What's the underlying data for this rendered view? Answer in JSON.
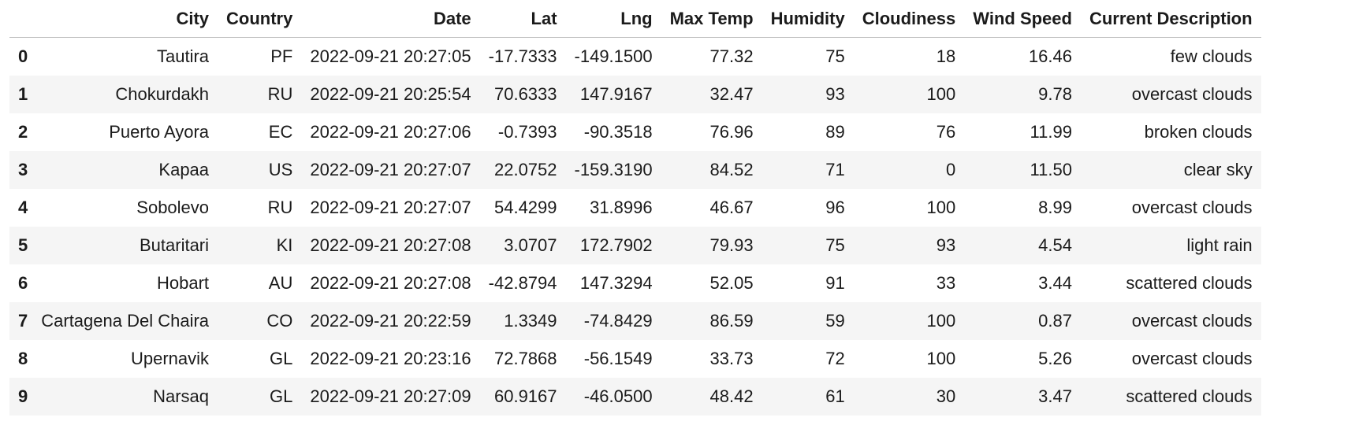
{
  "table": {
    "columns": [
      "City",
      "Country",
      "Date",
      "Lat",
      "Lng",
      "Max Temp",
      "Humidity",
      "Cloudiness",
      "Wind Speed",
      "Current Description"
    ],
    "rows": [
      {
        "index": "0",
        "cells": [
          "Tautira",
          "PF",
          "2022-09-21 20:27:05",
          "-17.7333",
          "-149.1500",
          "77.32",
          "75",
          "18",
          "16.46",
          "few clouds"
        ]
      },
      {
        "index": "1",
        "cells": [
          "Chokurdakh",
          "RU",
          "2022-09-21 20:25:54",
          "70.6333",
          "147.9167",
          "32.47",
          "93",
          "100",
          "9.78",
          "overcast clouds"
        ]
      },
      {
        "index": "2",
        "cells": [
          "Puerto Ayora",
          "EC",
          "2022-09-21 20:27:06",
          "-0.7393",
          "-90.3518",
          "76.96",
          "89",
          "76",
          "11.99",
          "broken clouds"
        ]
      },
      {
        "index": "3",
        "cells": [
          "Kapaa",
          "US",
          "2022-09-21 20:27:07",
          "22.0752",
          "-159.3190",
          "84.52",
          "71",
          "0",
          "11.50",
          "clear sky"
        ]
      },
      {
        "index": "4",
        "cells": [
          "Sobolevo",
          "RU",
          "2022-09-21 20:27:07",
          "54.4299",
          "31.8996",
          "46.67",
          "96",
          "100",
          "8.99",
          "overcast clouds"
        ]
      },
      {
        "index": "5",
        "cells": [
          "Butaritari",
          "KI",
          "2022-09-21 20:27:08",
          "3.0707",
          "172.7902",
          "79.93",
          "75",
          "93",
          "4.54",
          "light rain"
        ]
      },
      {
        "index": "6",
        "cells": [
          "Hobart",
          "AU",
          "2022-09-21 20:27:08",
          "-42.8794",
          "147.3294",
          "52.05",
          "91",
          "33",
          "3.44",
          "scattered clouds"
        ]
      },
      {
        "index": "7",
        "cells": [
          "Cartagena Del Chaira",
          "CO",
          "2022-09-21 20:22:59",
          "1.3349",
          "-74.8429",
          "86.59",
          "59",
          "100",
          "0.87",
          "overcast clouds"
        ]
      },
      {
        "index": "8",
        "cells": [
          "Upernavik",
          "GL",
          "2022-09-21 20:23:16",
          "72.7868",
          "-56.1549",
          "33.73",
          "72",
          "100",
          "5.26",
          "overcast clouds"
        ]
      },
      {
        "index": "9",
        "cells": [
          "Narsaq",
          "GL",
          "2022-09-21 20:27:09",
          "60.9167",
          "-46.0500",
          "48.42",
          "61",
          "30",
          "3.47",
          "scattered clouds"
        ]
      }
    ]
  },
  "colors": {
    "header_border": "#bdbdbd",
    "stripe": "#f5f5f5",
    "text": "#1b1b1b"
  }
}
